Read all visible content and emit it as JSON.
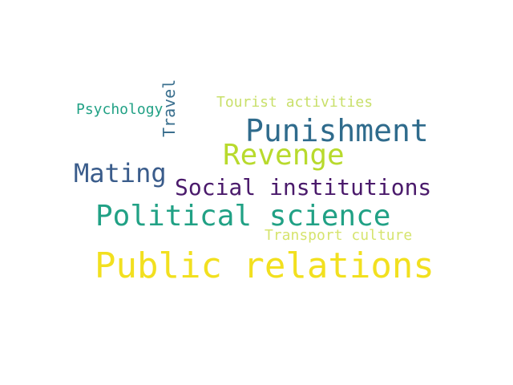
{
  "colors": {
    "background": "#ffffff",
    "yellow": "#f2e01f",
    "yellow_green": "#b8da2d",
    "teal": "#21a185",
    "dark_blue": "#2f6b8c",
    "blue": "#3a5c8b",
    "purple": "#4a1a6b",
    "light_green": "#c9e06b"
  },
  "words": {
    "public_relations": "Public relations",
    "political_science": "Political science",
    "punishment": "Punishment",
    "revenge": "Revenge",
    "mating": "Mating",
    "social_institutions": "Social institutions",
    "psychology": "Psychology",
    "tourist_activities": "Tourist activities",
    "transport_culture": "Transport culture",
    "travel": "Travel"
  }
}
